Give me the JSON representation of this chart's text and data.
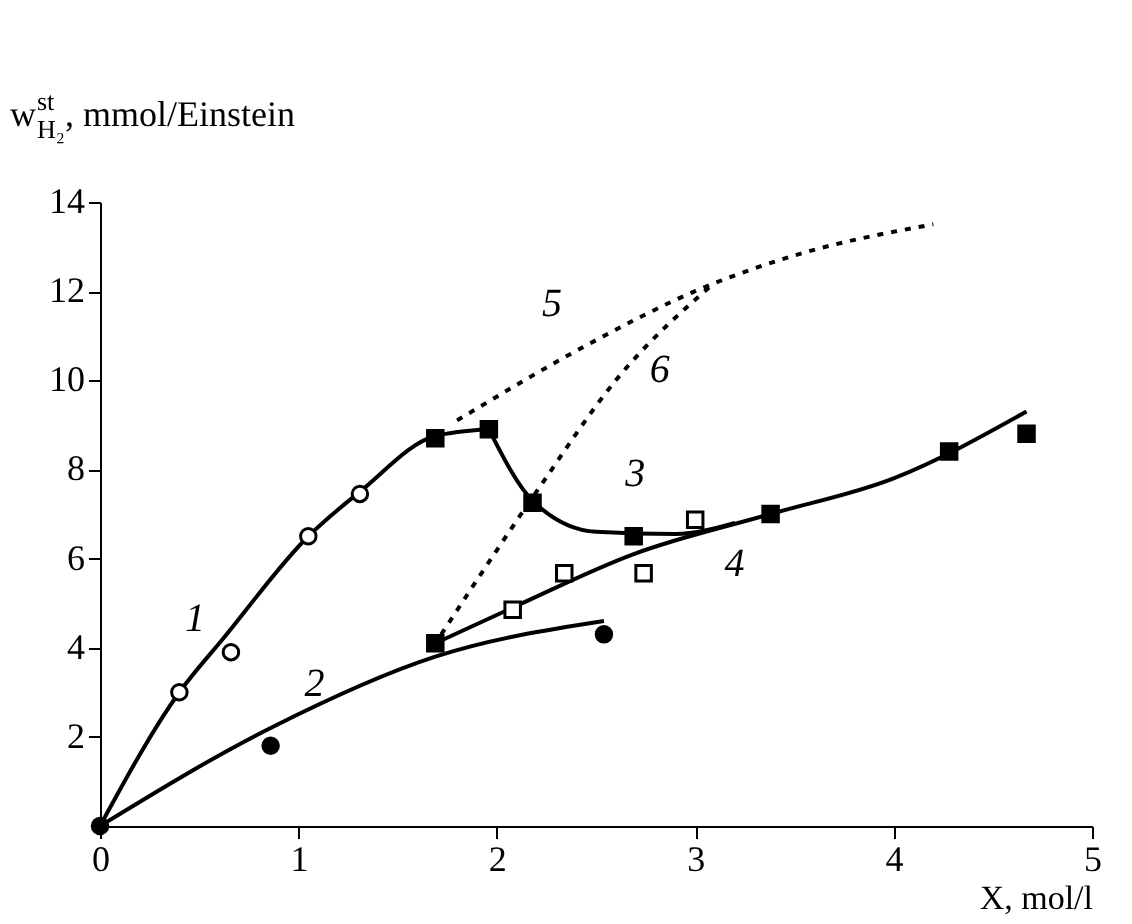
{
  "chart_data": {
    "type": "line",
    "xlabel": "X, mol/l",
    "ylabel": "w$_{H₂}$$^{st}$, mmol/Einstein",
    "xlim": [
      0,
      5
    ],
    "ylim": [
      0,
      14
    ],
    "xticks": [
      0,
      1,
      2,
      3,
      4,
      5
    ],
    "yticks": [
      2,
      4,
      6,
      8,
      10,
      12,
      14
    ],
    "series": [
      {
        "name": "1",
        "color": "#000000",
        "line_style": "solid",
        "x": [
          0,
          0.4,
          0.62,
          1.05,
          1.31,
          1.69,
          1.96
        ],
        "values": [
          0,
          3.0,
          4.2,
          6.5,
          7.5,
          8.75,
          8.9
        ]
      },
      {
        "name": "2",
        "color": "#000000",
        "line_style": "solid",
        "x": [
          0,
          0.86,
          1.69,
          2.54
        ],
        "values": [
          0,
          2.2,
          3.8,
          4.6
        ]
      },
      {
        "name": "3",
        "color": "#000000",
        "line_style": "solid",
        "x": [
          1.96,
          2.18,
          2.5,
          2.9,
          3.2
        ],
        "values": [
          8.9,
          7.3,
          6.6,
          6.55,
          6.8
        ]
      },
      {
        "name": "4",
        "color": "#000000",
        "line_style": "solid",
        "x": [
          1.69,
          2.08,
          2.69,
          3.38,
          4.0,
          4.67
        ],
        "values": [
          4.1,
          4.9,
          6.1,
          7.0,
          7.8,
          9.3
        ]
      },
      {
        "name": "5",
        "color": "#000000",
        "line_style": "dotted",
        "x": [
          1.8,
          2.5,
          3.0,
          3.5,
          4.2
        ],
        "values": [
          9.1,
          10.9,
          12.0,
          12.8,
          13.5
        ]
      },
      {
        "name": "6",
        "color": "#000000",
        "line_style": "dotted",
        "x": [
          1.72,
          2.2,
          2.6,
          3.1
        ],
        "values": [
          4.3,
          7.5,
          10.0,
          12.2
        ]
      },
      {
        "type": "scatter",
        "color": "#ffffff",
        "marker": "circle",
        "x": [
          0.4,
          0.66,
          1.05,
          1.31
        ],
        "values": [
          3.0,
          3.9,
          6.5,
          7.45
        ]
      },
      {
        "type": "scatter",
        "color": "#000000",
        "marker": "circle",
        "x": [
          0,
          0.86,
          2.54
        ],
        "values": [
          0,
          1.8,
          4.3
        ]
      },
      {
        "type": "scatter",
        "color": "#000000",
        "marker": "square",
        "x": [
          1.69,
          1.96,
          2.18,
          2.69,
          3.38,
          4.28,
          4.67,
          1.69
        ],
        "values": [
          8.7,
          8.9,
          7.25,
          6.5,
          7.0,
          8.4,
          8.8,
          4.1
        ]
      },
      {
        "type": "scatter",
        "color": "#ffffff",
        "marker": "square",
        "x": [
          2.08,
          2.34,
          2.74,
          3.0
        ],
        "values": [
          4.85,
          5.67,
          5.67,
          6.87
        ]
      }
    ]
  }
}
